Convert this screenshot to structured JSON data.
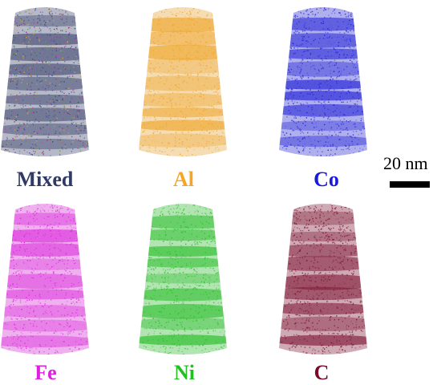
{
  "panels": [
    {
      "id": "mixed",
      "label": "Mixed",
      "label_color": "#2f3a66",
      "dot_colors": [
        "#2f3a66",
        "#8a2a7a",
        "#e0a030",
        "#3f4fb0",
        "#5a9a40",
        "#c040b0"
      ]
    },
    {
      "id": "al",
      "label": "Al",
      "label_color": "#f5a623",
      "dot_colors": [
        "#f5a623",
        "#f9c060"
      ]
    },
    {
      "id": "co",
      "label": "Co",
      "label_color": "#1a1adb",
      "dot_colors": [
        "#1a1adb",
        "#4a4af0"
      ]
    },
    {
      "id": "fe",
      "label": "Fe",
      "label_color": "#e020e0",
      "dot_colors": [
        "#e020e0",
        "#f060f0"
      ]
    },
    {
      "id": "ni",
      "label": "Ni",
      "label_color": "#22c022",
      "dot_colors": [
        "#22c022",
        "#50d850"
      ]
    },
    {
      "id": "c",
      "label": "C",
      "label_color": "#7a0a2a",
      "dot_colors": [
        "#7a0a2a",
        "#9a3050"
      ]
    }
  ],
  "scale_bar": {
    "label": "20 nm"
  }
}
